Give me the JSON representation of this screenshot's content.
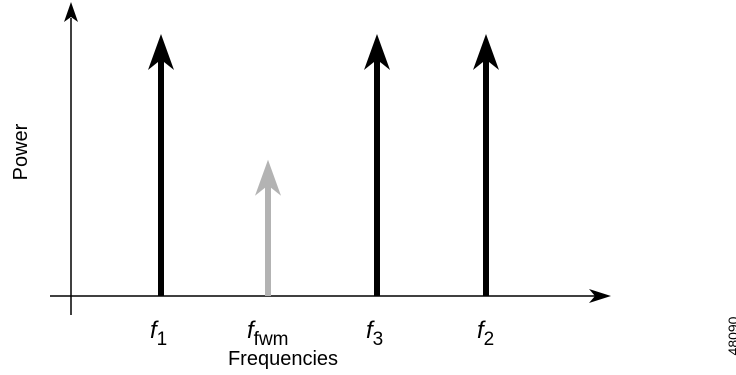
{
  "diagram": {
    "y_axis_label": "Power",
    "x_axis_label": "Frequencies",
    "figure_number": "48090",
    "colors": {
      "axis": "#000000",
      "signal": "#000000",
      "fwm_product": "#b3b3b3"
    },
    "components": [
      {
        "symbol": "f",
        "subscript": "1",
        "relative_power": 1.0,
        "color": "#000000",
        "kind": "signal"
      },
      {
        "symbol": "f",
        "subscript": "fwm",
        "relative_power": 0.52,
        "color": "#b3b3b3",
        "kind": "four-wave-mixing product"
      },
      {
        "symbol": "f",
        "subscript": "3",
        "relative_power": 1.0,
        "color": "#000000",
        "kind": "signal"
      },
      {
        "symbol": "f",
        "subscript": "2",
        "relative_power": 1.0,
        "color": "#000000",
        "kind": "signal"
      }
    ]
  }
}
